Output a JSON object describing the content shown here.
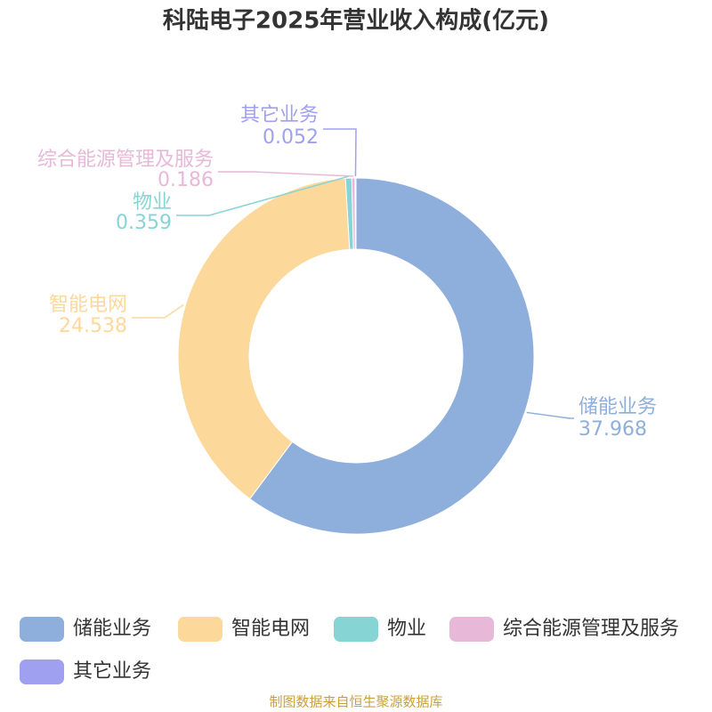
{
  "chart_data": {
    "type": "donut",
    "title": "科陆电子2025年营业收入构成(亿元)",
    "categories": [
      "储能业务",
      "智能电网",
      "物业",
      "综合能源管理及服务",
      "其它业务"
    ],
    "values": [
      37.968,
      24.538,
      0.359,
      0.186,
      0.052
    ],
    "colors": [
      "#8eaedb",
      "#fdd89b",
      "#86d4d4",
      "#e8b8d8",
      "#a0a0f0"
    ],
    "legend": "bottom",
    "source": "制图数据来自恒生聚源数据库"
  }
}
